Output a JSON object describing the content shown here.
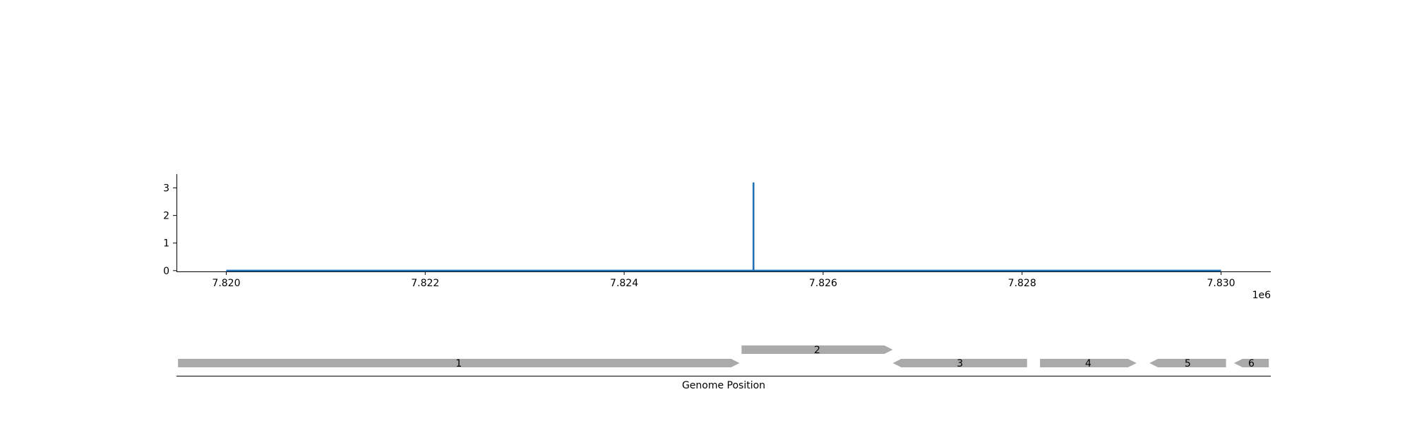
{
  "chart_data": [
    {
      "type": "line",
      "series": [
        {
          "color": "#1f6fb2",
          "x": [
            7820000,
            7825300,
            7825300,
            7825300,
            7830000
          ],
          "y": [
            0,
            0,
            3.2,
            0,
            0
          ]
        }
      ],
      "xlim": [
        7819500,
        7830500
      ],
      "ylim": [
        -0.03,
        3.5
      ],
      "xticks": [
        7820000,
        7822000,
        7824000,
        7826000,
        7828000,
        7830000
      ],
      "xtick_labels": [
        "7.820",
        "7.822",
        "7.824",
        "7.826",
        "7.828",
        "7.830"
      ],
      "yticks": [
        0,
        1,
        2,
        3
      ],
      "ytick_labels": [
        "0",
        "1",
        "2",
        "3"
      ],
      "x_offset_label": "1e6",
      "grid": false
    },
    {
      "type": "gene-track",
      "xlabel": "Genome Position",
      "xlim": [
        7819500,
        7830500
      ],
      "genes": [
        {
          "label": "1",
          "start": 7819515,
          "end": 7825160,
          "strand": "+",
          "row": 0
        },
        {
          "label": "2",
          "start": 7825180,
          "end": 7826700,
          "strand": "+",
          "row": 1
        },
        {
          "label": "3",
          "start": 7826700,
          "end": 7828050,
          "strand": "-",
          "row": 0
        },
        {
          "label": "4",
          "start": 7828180,
          "end": 7829150,
          "strand": "+",
          "row": 0
        },
        {
          "label": "5",
          "start": 7829280,
          "end": 7830050,
          "strand": "-",
          "row": 0
        },
        {
          "label": "6",
          "start": 7830130,
          "end": 7830480,
          "strand": "-",
          "row": 0
        }
      ],
      "gene_color": "#aaaaaa"
    }
  ]
}
